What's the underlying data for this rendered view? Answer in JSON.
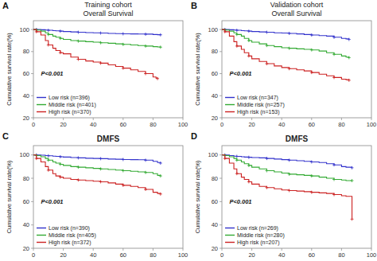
{
  "chart_data": [
    {
      "type": "step",
      "title": "Training cohort",
      "subtitle": "Overall Survival",
      "y_label": "Cumulative survival rate(%)",
      "annotations": [
        "A",
        "P<0.001"
      ],
      "marker": "plus",
      "legend": "lower left",
      "grid": false,
      "xlim": [
        0,
        100
      ],
      "ylim": [
        20,
        108
      ],
      "xticks": [
        0,
        20,
        40,
        60,
        80,
        100
      ],
      "yticks": [
        20,
        40,
        60,
        80,
        100
      ],
      "series": [
        {
          "name": "Low risk (n=396)",
          "color": "#3333cc",
          "x": [
            0,
            2,
            5,
            8,
            10,
            13,
            15,
            18,
            20,
            25,
            30,
            35,
            40,
            45,
            50,
            55,
            60,
            65,
            70,
            75,
            80,
            83,
            85
          ],
          "values": [
            100,
            100,
            99.8,
            99.5,
            99.3,
            99,
            98.8,
            98.5,
            98.2,
            97.8,
            97.5,
            97.2,
            97,
            96.8,
            96.5,
            96.3,
            96.1,
            96,
            95.9,
            95.8,
            95.5,
            95.3,
            95.2
          ]
        },
        {
          "name": "Middle risk (n=401)",
          "color": "#33aa33",
          "x": [
            0,
            2,
            5,
            8,
            10,
            13,
            15,
            18,
            20,
            25,
            30,
            35,
            40,
            45,
            50,
            55,
            60,
            65,
            70,
            75,
            80,
            83,
            85
          ],
          "values": [
            100,
            99.5,
            98.5,
            97,
            95.5,
            94,
            93,
            92,
            91,
            90,
            89.5,
            89,
            88.5,
            88,
            87.5,
            87,
            86.5,
            86,
            85.5,
            85,
            84.5,
            84.2,
            84
          ]
        },
        {
          "name": "High risk (n=370)",
          "color": "#cc2222",
          "x": [
            0,
            2,
            5,
            8,
            10,
            13,
            15,
            18,
            20,
            25,
            30,
            35,
            40,
            45,
            50,
            55,
            60,
            65,
            70,
            75,
            80,
            82,
            83
          ],
          "values": [
            100,
            98,
            95,
            90,
            86,
            83,
            81,
            79,
            78,
            75,
            73,
            71.5,
            70.5,
            69.5,
            68,
            66.5,
            65,
            63.5,
            62,
            60,
            57,
            56,
            55.5
          ]
        }
      ]
    },
    {
      "type": "step",
      "title": "Validation cohort",
      "subtitle": "Overall Survival",
      "y_label": "Cumulative survival rate(%)",
      "annotations": [
        "B",
        "P<0.001"
      ],
      "marker": "plus",
      "legend": "lower left",
      "grid": false,
      "xlim": [
        0,
        100
      ],
      "ylim": [
        20,
        108
      ],
      "xticks": [
        0,
        20,
        40,
        60,
        80,
        100
      ],
      "yticks": [
        20,
        40,
        60,
        80,
        100
      ],
      "series": [
        {
          "name": "Low risk (n=347)",
          "color": "#3333cc",
          "x": [
            0,
            2,
            5,
            8,
            10,
            13,
            15,
            18,
            20,
            25,
            30,
            35,
            40,
            45,
            50,
            55,
            60,
            65,
            70,
            75,
            80,
            83,
            85
          ],
          "values": [
            100,
            100,
            99.8,
            99.5,
            99.3,
            99,
            98.8,
            98.5,
            98.2,
            97.8,
            97.5,
            97,
            96.8,
            96.5,
            96,
            95.5,
            95,
            94.5,
            94,
            93,
            92,
            91.5,
            91
          ]
        },
        {
          "name": "Middle risk (n=257)",
          "color": "#33aa33",
          "x": [
            0,
            2,
            5,
            8,
            10,
            13,
            15,
            18,
            20,
            25,
            30,
            35,
            40,
            45,
            50,
            55,
            60,
            65,
            70,
            75,
            80,
            83,
            85
          ],
          "values": [
            100,
            99.5,
            98.5,
            97,
            95.5,
            94,
            92,
            90,
            88.5,
            87,
            85.5,
            84.5,
            83.5,
            83,
            82.5,
            82,
            81.5,
            80.5,
            79,
            77.5,
            76,
            75,
            74.5
          ]
        },
        {
          "name": "High risk (n=153)",
          "color": "#cc2222",
          "x": [
            0,
            2,
            5,
            8,
            10,
            13,
            15,
            18,
            20,
            25,
            30,
            35,
            40,
            45,
            50,
            55,
            60,
            65,
            70,
            75,
            80,
            83,
            85
          ],
          "values": [
            100,
            98,
            94,
            89,
            85,
            82,
            79,
            76,
            73.5,
            71,
            69,
            67,
            65.5,
            64.5,
            63.5,
            62.5,
            61,
            59.5,
            58,
            56.5,
            55,
            54.5,
            54
          ]
        }
      ]
    },
    {
      "type": "step",
      "title": "DMFS",
      "y_label": "Cumulative survival rate(%)",
      "annotations": [
        "C",
        "P<0.001"
      ],
      "marker": "plus",
      "legend": "lower left",
      "grid": false,
      "xlim": [
        0,
        100
      ],
      "ylim": [
        20,
        108
      ],
      "xticks": [
        0,
        20,
        40,
        60,
        80,
        100
      ],
      "yticks": [
        20,
        40,
        60,
        80,
        100
      ],
      "series": [
        {
          "name": "Low risk (n=390)",
          "color": "#3333cc",
          "x": [
            0,
            2,
            5,
            8,
            10,
            13,
            15,
            18,
            20,
            25,
            30,
            35,
            40,
            45,
            50,
            55,
            60,
            65,
            70,
            75,
            80,
            83,
            85
          ],
          "values": [
            100,
            100,
            99.8,
            99.5,
            99.3,
            99,
            98.8,
            98.5,
            98.2,
            97.8,
            97.5,
            97.2,
            97,
            96.8,
            96.5,
            96.3,
            96.1,
            96,
            95.9,
            95.5,
            94.5,
            93.5,
            93
          ]
        },
        {
          "name": "Middle risk (n=405)",
          "color": "#33aa33",
          "x": [
            0,
            2,
            5,
            8,
            10,
            13,
            15,
            18,
            20,
            25,
            30,
            35,
            40,
            45,
            50,
            55,
            60,
            65,
            70,
            75,
            80,
            83,
            85
          ],
          "values": [
            100,
            99.5,
            98.5,
            97,
            95.5,
            94,
            93,
            92,
            91,
            90,
            89.5,
            89,
            88.5,
            88,
            87.5,
            87,
            86.5,
            86,
            85.5,
            85,
            84,
            82.5,
            82
          ]
        },
        {
          "name": "High risk (n=372)",
          "color": "#cc2222",
          "x": [
            0,
            2,
            5,
            8,
            10,
            13,
            15,
            18,
            20,
            25,
            30,
            35,
            40,
            45,
            50,
            55,
            60,
            65,
            70,
            75,
            80,
            83,
            85
          ],
          "values": [
            100,
            97,
            94,
            90,
            87,
            84,
            82,
            81,
            80,
            79,
            78.5,
            78,
            77.5,
            77,
            76,
            75,
            74,
            73,
            72,
            70.5,
            68,
            67,
            66.5
          ]
        }
      ]
    },
    {
      "type": "step",
      "title": "DMFS",
      "y_label": "Cumulative survival rate(%)",
      "annotations": [
        "D",
        "P<0.001"
      ],
      "marker": "plus",
      "legend": "lower left",
      "grid": false,
      "xlim": [
        0,
        100
      ],
      "ylim": [
        20,
        108
      ],
      "xticks": [
        0,
        20,
        40,
        60,
        80,
        100
      ],
      "yticks": [
        20,
        40,
        60,
        80,
        100
      ],
      "series": [
        {
          "name": "Low risk (n=269)",
          "color": "#3333cc",
          "x": [
            0,
            2,
            5,
            8,
            10,
            13,
            15,
            18,
            20,
            25,
            30,
            35,
            40,
            45,
            50,
            55,
            60,
            65,
            70,
            75,
            80,
            83,
            87
          ],
          "values": [
            100,
            100,
            99.5,
            99,
            98.8,
            98.5,
            98.2,
            98,
            97.8,
            97.5,
            97,
            96.5,
            96,
            95.5,
            95,
            94.5,
            94,
            93.5,
            92.5,
            91.5,
            90,
            89.5,
            89
          ]
        },
        {
          "name": "Middle risk (n=280)",
          "color": "#33aa33",
          "x": [
            0,
            2,
            5,
            8,
            10,
            13,
            15,
            18,
            20,
            25,
            30,
            35,
            40,
            45,
            50,
            55,
            60,
            65,
            70,
            75,
            80,
            83,
            87
          ],
          "values": [
            100,
            99.5,
            98.5,
            97,
            95.5,
            94,
            92.5,
            91,
            89.5,
            88,
            86.5,
            85.5,
            84.5,
            83.5,
            83,
            82.5,
            82,
            81,
            80,
            79,
            78.5,
            78,
            78
          ]
        },
        {
          "name": "High risk (n=207)",
          "color": "#cc2222",
          "x": [
            0,
            2,
            5,
            8,
            10,
            13,
            15,
            18,
            20,
            25,
            30,
            35,
            40,
            45,
            50,
            55,
            60,
            65,
            70,
            75,
            80,
            83,
            87
          ],
          "values": [
            100,
            97,
            93,
            88,
            84,
            81,
            79,
            77,
            75,
            73,
            72,
            71,
            70,
            69.5,
            69,
            68.5,
            68,
            67.5,
            67,
            66,
            65,
            64.5,
            45
          ]
        }
      ]
    }
  ]
}
